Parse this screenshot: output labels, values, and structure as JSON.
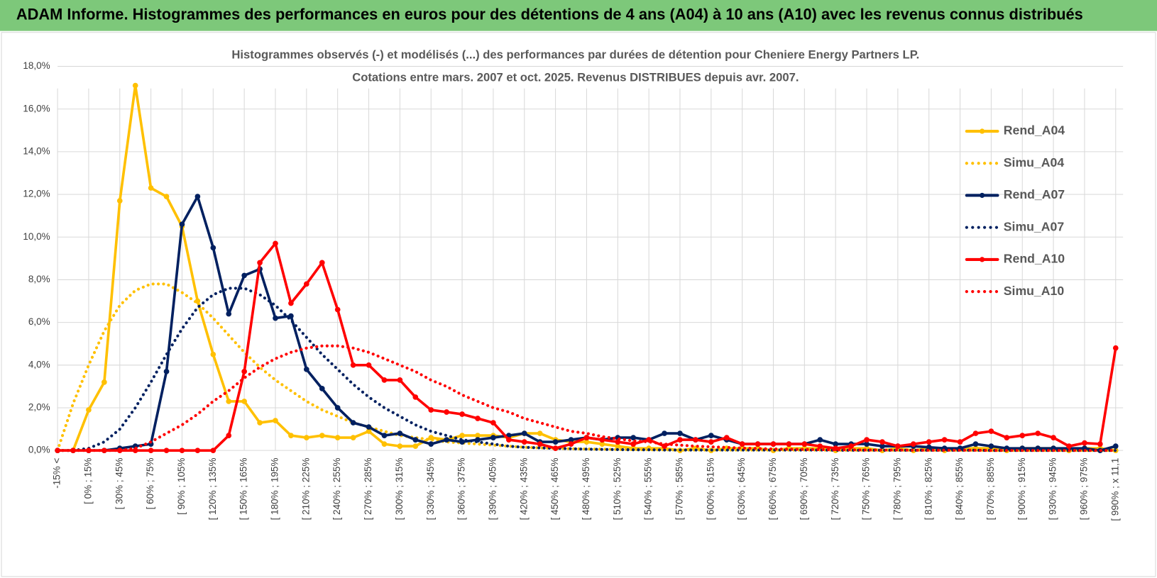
{
  "header": {
    "title": "ADAM Informe. Histogrammes des performances en euros pour des détentions de 4 ans (A04) à 10 ans (A10) avec les revenus connus distribués"
  },
  "chart_data": {
    "type": "line",
    "title": "Histogrammes observés (-) et modélisés (...) des performances par durées de détention pour Cheniere Energy Partners LP.",
    "subtitle": "Cotations entre mars. 2007 et oct. 2025. Revenus DISTRIBUES depuis avr. 2007.",
    "categories": [
      "-15% <",
      null,
      "[ 0% ; 15%",
      null,
      "[ 30% ; 45%",
      null,
      "[ 60% ; 75%",
      null,
      "[ 90% ; 105%",
      null,
      "[ 120% ; 135%",
      null,
      "[ 150% ; 165%",
      null,
      "[ 180% ; 195%",
      null,
      "[ 210% ; 225%",
      null,
      "[ 240% ; 255%",
      null,
      "[ 270% ; 285%",
      null,
      "[ 300% ; 315%",
      null,
      "[ 330% ; 345%",
      null,
      "[ 360% ; 375%",
      null,
      "[ 390% ; 405%",
      null,
      "[ 420% ; 435%",
      null,
      "[ 450% ; 465%",
      null,
      "[ 480% ; 495%",
      null,
      "[ 510% ; 525%",
      null,
      "[ 540% ; 555%",
      null,
      "[ 570% ; 585%",
      null,
      "[ 600% ; 615%",
      null,
      "[ 630% ; 645%",
      null,
      "[ 660% ; 675%",
      null,
      "[ 690% ; 705%",
      null,
      "[ 720% ; 735%",
      null,
      "[ 750% ; 765%",
      null,
      "[ 780% ; 795%",
      null,
      "[ 810% ; 825%",
      null,
      "[ 840% ; 855%",
      null,
      "[ 870% ; 885%",
      null,
      "[ 900% ; 915%",
      null,
      "[ 930% ; 945%",
      null,
      "[ 960% ; 975%",
      null,
      "[ 990% ; x 11,1"
    ],
    "ylim": [
      0,
      18
    ],
    "yticks": [
      {
        "value": 0,
        "label": "0,0%"
      },
      {
        "value": 2,
        "label": "2,0%"
      },
      {
        "value": 4,
        "label": "4,0%"
      },
      {
        "value": 6,
        "label": "6,0%"
      },
      {
        "value": 8,
        "label": "8,0%"
      },
      {
        "value": 10,
        "label": "10,0%"
      },
      {
        "value": 12,
        "label": "12,0%"
      },
      {
        "value": 14,
        "label": "14,0%"
      },
      {
        "value": 16,
        "label": "16,0%"
      },
      {
        "value": 18,
        "label": "18,0%"
      }
    ],
    "grid": true,
    "legend": "right",
    "series": [
      {
        "name": "Rend_A04",
        "color": "#ffc000",
        "style": "solid",
        "values": [
          0,
          0,
          1.9,
          3.2,
          11.7,
          17.1,
          12.3,
          11.9,
          10.5,
          7.0,
          4.5,
          2.3,
          2.3,
          1.3,
          1.4,
          0.7,
          0.6,
          0.7,
          0.6,
          0.6,
          0.9,
          0.3,
          0.2,
          0.2,
          0.6,
          0.5,
          0.7,
          0.7,
          0.7,
          0.6,
          0.8,
          0.8,
          0.5,
          0.4,
          0.4,
          0.3,
          0.2,
          0.1,
          0.1,
          0.1,
          0,
          0.1,
          0,
          0.1,
          0.1,
          0.1,
          0,
          0.1,
          0.1,
          0.1,
          0,
          0.1,
          0.1,
          0,
          0.1,
          0,
          0.1,
          0,
          0.1,
          0.1,
          0.1,
          0,
          0.1,
          0.1,
          0.1,
          0,
          0.1,
          0.1,
          0
        ]
      },
      {
        "name": "Simu_A04",
        "color": "#ffc000",
        "style": "dotted",
        "values": [
          0,
          2.2,
          4.0,
          5.6,
          6.8,
          7.5,
          7.8,
          7.8,
          7.4,
          6.9,
          6.2,
          5.4,
          4.6,
          3.9,
          3.3,
          2.8,
          2.3,
          1.9,
          1.6,
          1.3,
          1.1,
          0.9,
          0.7,
          0.6,
          0.5,
          0.4,
          0.35,
          0.3,
          0.25,
          0.2,
          0.15,
          0.12,
          0.1,
          0.08,
          0.07,
          0.06,
          0.05,
          0.04,
          0.03,
          0.03,
          0.02,
          0.02,
          0.02,
          0.02,
          0.02,
          0.02,
          0.02,
          0.02,
          0.02,
          0.02,
          0.01,
          0.01,
          0.01,
          0.01,
          0.01,
          0.01,
          0.01,
          0.01,
          0.01,
          0.01,
          0,
          0,
          0,
          0,
          0,
          0,
          0,
          0,
          0
        ]
      },
      {
        "name": "Rend_A07",
        "color": "#002060",
        "style": "solid",
        "values": [
          0,
          0,
          0,
          0,
          0.1,
          0.2,
          0.3,
          3.7,
          10.6,
          11.9,
          9.5,
          6.4,
          8.2,
          8.5,
          6.2,
          6.3,
          3.8,
          2.9,
          2.0,
          1.3,
          1.1,
          0.7,
          0.8,
          0.5,
          0.3,
          0.5,
          0.4,
          0.5,
          0.6,
          0.7,
          0.8,
          0.4,
          0.4,
          0.5,
          0.6,
          0.5,
          0.6,
          0.6,
          0.5,
          0.8,
          0.8,
          0.5,
          0.7,
          0.5,
          0.3,
          0.3,
          0.3,
          0.3,
          0.3,
          0.5,
          0.3,
          0.3,
          0.3,
          0.2,
          0.2,
          0.2,
          0.15,
          0.1,
          0.1,
          0.3,
          0.2,
          0.1,
          0.1,
          0.1,
          0.1,
          0.1,
          0.1,
          0,
          0.2
        ]
      },
      {
        "name": "Simu_A07",
        "color": "#002060",
        "style": "dotted",
        "values": [
          0,
          0,
          0.1,
          0.4,
          1.0,
          2.0,
          3.2,
          4.5,
          5.7,
          6.7,
          7.3,
          7.6,
          7.6,
          7.3,
          6.8,
          6.1,
          5.3,
          4.5,
          3.8,
          3.1,
          2.5,
          2.0,
          1.6,
          1.2,
          0.9,
          0.7,
          0.5,
          0.4,
          0.3,
          0.2,
          0.15,
          0.12,
          0.1,
          0.08,
          0.06,
          0.05,
          0.04,
          0.03,
          0.03,
          0.02,
          0.02,
          0.02,
          0.02,
          0.02,
          0.02,
          0.02,
          0.02,
          0.02,
          0.02,
          0.02,
          0.01,
          0.01,
          0.01,
          0.01,
          0.01,
          0.01,
          0.01,
          0.01,
          0.01,
          0.01,
          0,
          0,
          0,
          0,
          0,
          0,
          0,
          0,
          0
        ]
      },
      {
        "name": "Rend_A10",
        "color": "#ff0000",
        "style": "solid",
        "values": [
          0,
          0,
          0,
          0,
          0,
          0,
          0,
          0,
          0,
          0,
          0,
          0.7,
          3.7,
          8.8,
          9.7,
          6.9,
          7.8,
          8.8,
          6.6,
          4.0,
          4.0,
          3.3,
          3.3,
          2.5,
          1.9,
          1.8,
          1.7,
          1.5,
          1.3,
          0.5,
          0.4,
          0.3,
          0.1,
          0.3,
          0.6,
          0.5,
          0.4,
          0.3,
          0.5,
          0.2,
          0.5,
          0.5,
          0.4,
          0.6,
          0.3,
          0.3,
          0.3,
          0.3,
          0.3,
          0.2,
          0.1,
          0.2,
          0.5,
          0.4,
          0.2,
          0.3,
          0.4,
          0.5,
          0.4,
          0.8,
          0.9,
          0.6,
          0.7,
          0.8,
          0.6,
          0.2,
          0.35,
          0.3,
          4.8
        ]
      },
      {
        "name": "Simu_A10",
        "color": "#ff0000",
        "style": "dotted",
        "values": [
          0,
          0,
          0,
          0,
          0,
          0.1,
          0.4,
          0.8,
          1.2,
          1.7,
          2.3,
          2.8,
          3.4,
          3.9,
          4.3,
          4.6,
          4.8,
          4.9,
          4.9,
          4.8,
          4.6,
          4.3,
          4.0,
          3.7,
          3.3,
          3.0,
          2.6,
          2.3,
          2.0,
          1.8,
          1.5,
          1.3,
          1.1,
          0.9,
          0.8,
          0.65,
          0.55,
          0.45,
          0.4,
          0.3,
          0.25,
          0.2,
          0.17,
          0.14,
          0.11,
          0.09,
          0.07,
          0.06,
          0.05,
          0.04,
          0.03,
          0.03,
          0.02,
          0.02,
          0.02,
          0.01,
          0.01,
          0.01,
          0.01,
          0.01,
          0,
          0,
          0,
          0,
          0,
          0,
          0,
          0,
          0
        ]
      }
    ]
  }
}
